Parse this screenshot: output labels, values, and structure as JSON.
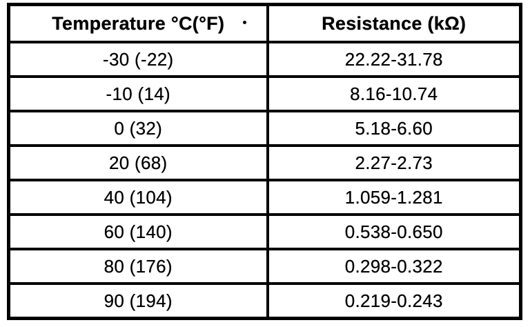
{
  "page": {
    "background_color": "#ffffff",
    "ink_color": "#000000"
  },
  "table": {
    "columns": [
      {
        "key": "temperature",
        "label": "Temperature °C(°F)"
      },
      {
        "key": "resistance",
        "label": "Resistance (kΩ)"
      }
    ],
    "rows": [
      {
        "temperature": "-30 (-22)",
        "resistance": "22.22-31.78"
      },
      {
        "temperature": "-10 (14)",
        "resistance": "8.16-10.74"
      },
      {
        "temperature": "0 (32)",
        "resistance": "5.18-6.60"
      },
      {
        "temperature": "20 (68)",
        "resistance": "2.27-2.73"
      },
      {
        "temperature": "40 (104)",
        "resistance": "1.059-1.281"
      },
      {
        "temperature": "60 (140)",
        "resistance": "0.538-0.650"
      },
      {
        "temperature": "80 (176)",
        "resistance": "0.298-0.322"
      },
      {
        "temperature": "90 (194)",
        "resistance": "0.219-0.243"
      }
    ]
  },
  "chart_data": {
    "type": "table",
    "columns": [
      "Temperature °C(°F)",
      "Resistance (kΩ)"
    ],
    "rows": [
      [
        "-30 (-22)",
        "22.22-31.78"
      ],
      [
        "-10 (14)",
        "8.16-10.74"
      ],
      [
        "0 (32)",
        "5.18-6.60"
      ],
      [
        "20 (68)",
        "2.27-2.73"
      ],
      [
        "40 (104)",
        "1.059-1.281"
      ],
      [
        "60 (140)",
        "0.538-0.650"
      ],
      [
        "80 (176)",
        "0.298-0.322"
      ],
      [
        "90 (194)",
        "0.219-0.243"
      ]
    ]
  }
}
